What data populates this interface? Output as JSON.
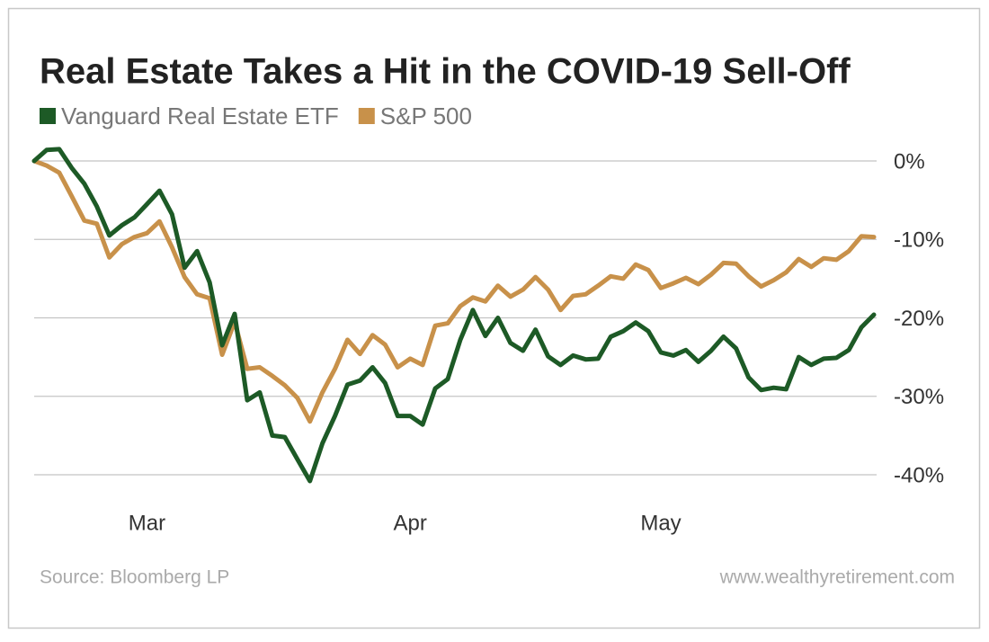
{
  "chart_data": {
    "type": "line",
    "title": "Real Estate Takes a Hit in the COVID-19 Sell-Off",
    "source": "Source: Bloomberg LP",
    "credit": "www.wealthyretirement.com",
    "categories": [
      null,
      null,
      null,
      null,
      null,
      null,
      null,
      null,
      null,
      "Mar",
      null,
      null,
      null,
      null,
      null,
      null,
      null,
      null,
      null,
      null,
      null,
      null,
      null,
      null,
      null,
      null,
      null,
      null,
      null,
      null,
      "Apr",
      null,
      null,
      null,
      null,
      null,
      null,
      null,
      null,
      null,
      null,
      null,
      null,
      null,
      null,
      null,
      null,
      null,
      null,
      null,
      "May",
      null,
      null,
      null,
      null,
      null,
      null,
      null,
      null,
      null,
      null,
      null,
      null,
      null,
      null,
      null,
      null,
      null
    ],
    "ylim": [
      -42.5,
      1.5
    ],
    "yticks": [
      {
        "value": 0,
        "label": "0%"
      },
      {
        "value": -10,
        "label": "-10%"
      },
      {
        "value": -20,
        "label": "-20%"
      },
      {
        "value": -30,
        "label": "-30%"
      },
      {
        "value": -40,
        "label": "-40%"
      }
    ],
    "grid": true,
    "series": [
      {
        "name": "Vanguard Real Estate ETF",
        "color": "#1d5a26",
        "values": [
          0,
          1.4,
          1.5,
          -0.9,
          -2.9,
          -5.8,
          -9.5,
          -8.2,
          -7.2,
          -5.5,
          -3.8,
          -6.8,
          -13.6,
          -11.5,
          -15.5,
          -23.5,
          -19.5,
          -30.5,
          -29.5,
          -35,
          -35.2,
          -38,
          -40.8,
          -36,
          -32.5,
          -28.5,
          -28,
          -26.3,
          -28.3,
          -32.5,
          -32.5,
          -33.6,
          -29,
          -27.8,
          -22.8,
          -19,
          -22.3,
          -20,
          -23.2,
          -24.2,
          -21.5,
          -24.9,
          -26,
          -24.8,
          -25.3,
          -25.2,
          -22.4,
          -21.7,
          -20.6,
          -21.7,
          -24.4,
          -24.8,
          -24.1,
          -25.6,
          -24.2,
          -22.4,
          -23.9,
          -27.6,
          -29.2,
          -28.9,
          -29.1,
          -25,
          -26,
          -25.2,
          -25.1,
          -24.1,
          -21.2,
          -19.6
        ]
      },
      {
        "name": "S&P 500",
        "color": "#c8914a",
        "values": [
          0,
          -0.6,
          -1.5,
          -4.5,
          -7.6,
          -8,
          -12.3,
          -10.6,
          -9.7,
          -9.2,
          -7.7,
          -11,
          -14.8,
          -17,
          -17.5,
          -24.7,
          -20.5,
          -26.5,
          -26.3,
          -27.4,
          -28.6,
          -30.2,
          -33.2,
          -29.5,
          -26.5,
          -22.8,
          -24.6,
          -22.2,
          -23.4,
          -26.3,
          -25.2,
          -26,
          -21,
          -20.7,
          -18.5,
          -17.4,
          -17.9,
          -15.9,
          -17.3,
          -16.4,
          -14.8,
          -16.4,
          -19,
          -17.2,
          -17,
          -15.9,
          -14.7,
          -15,
          -13.2,
          -13.9,
          -16.2,
          -15.6,
          -14.9,
          -15.7,
          -14.5,
          -13,
          -13.1,
          -14.7,
          -16,
          -15.2,
          -14.2,
          -12.5,
          -13.5,
          -12.4,
          -12.6,
          -11.5,
          -9.6,
          -9.7
        ]
      }
    ]
  }
}
